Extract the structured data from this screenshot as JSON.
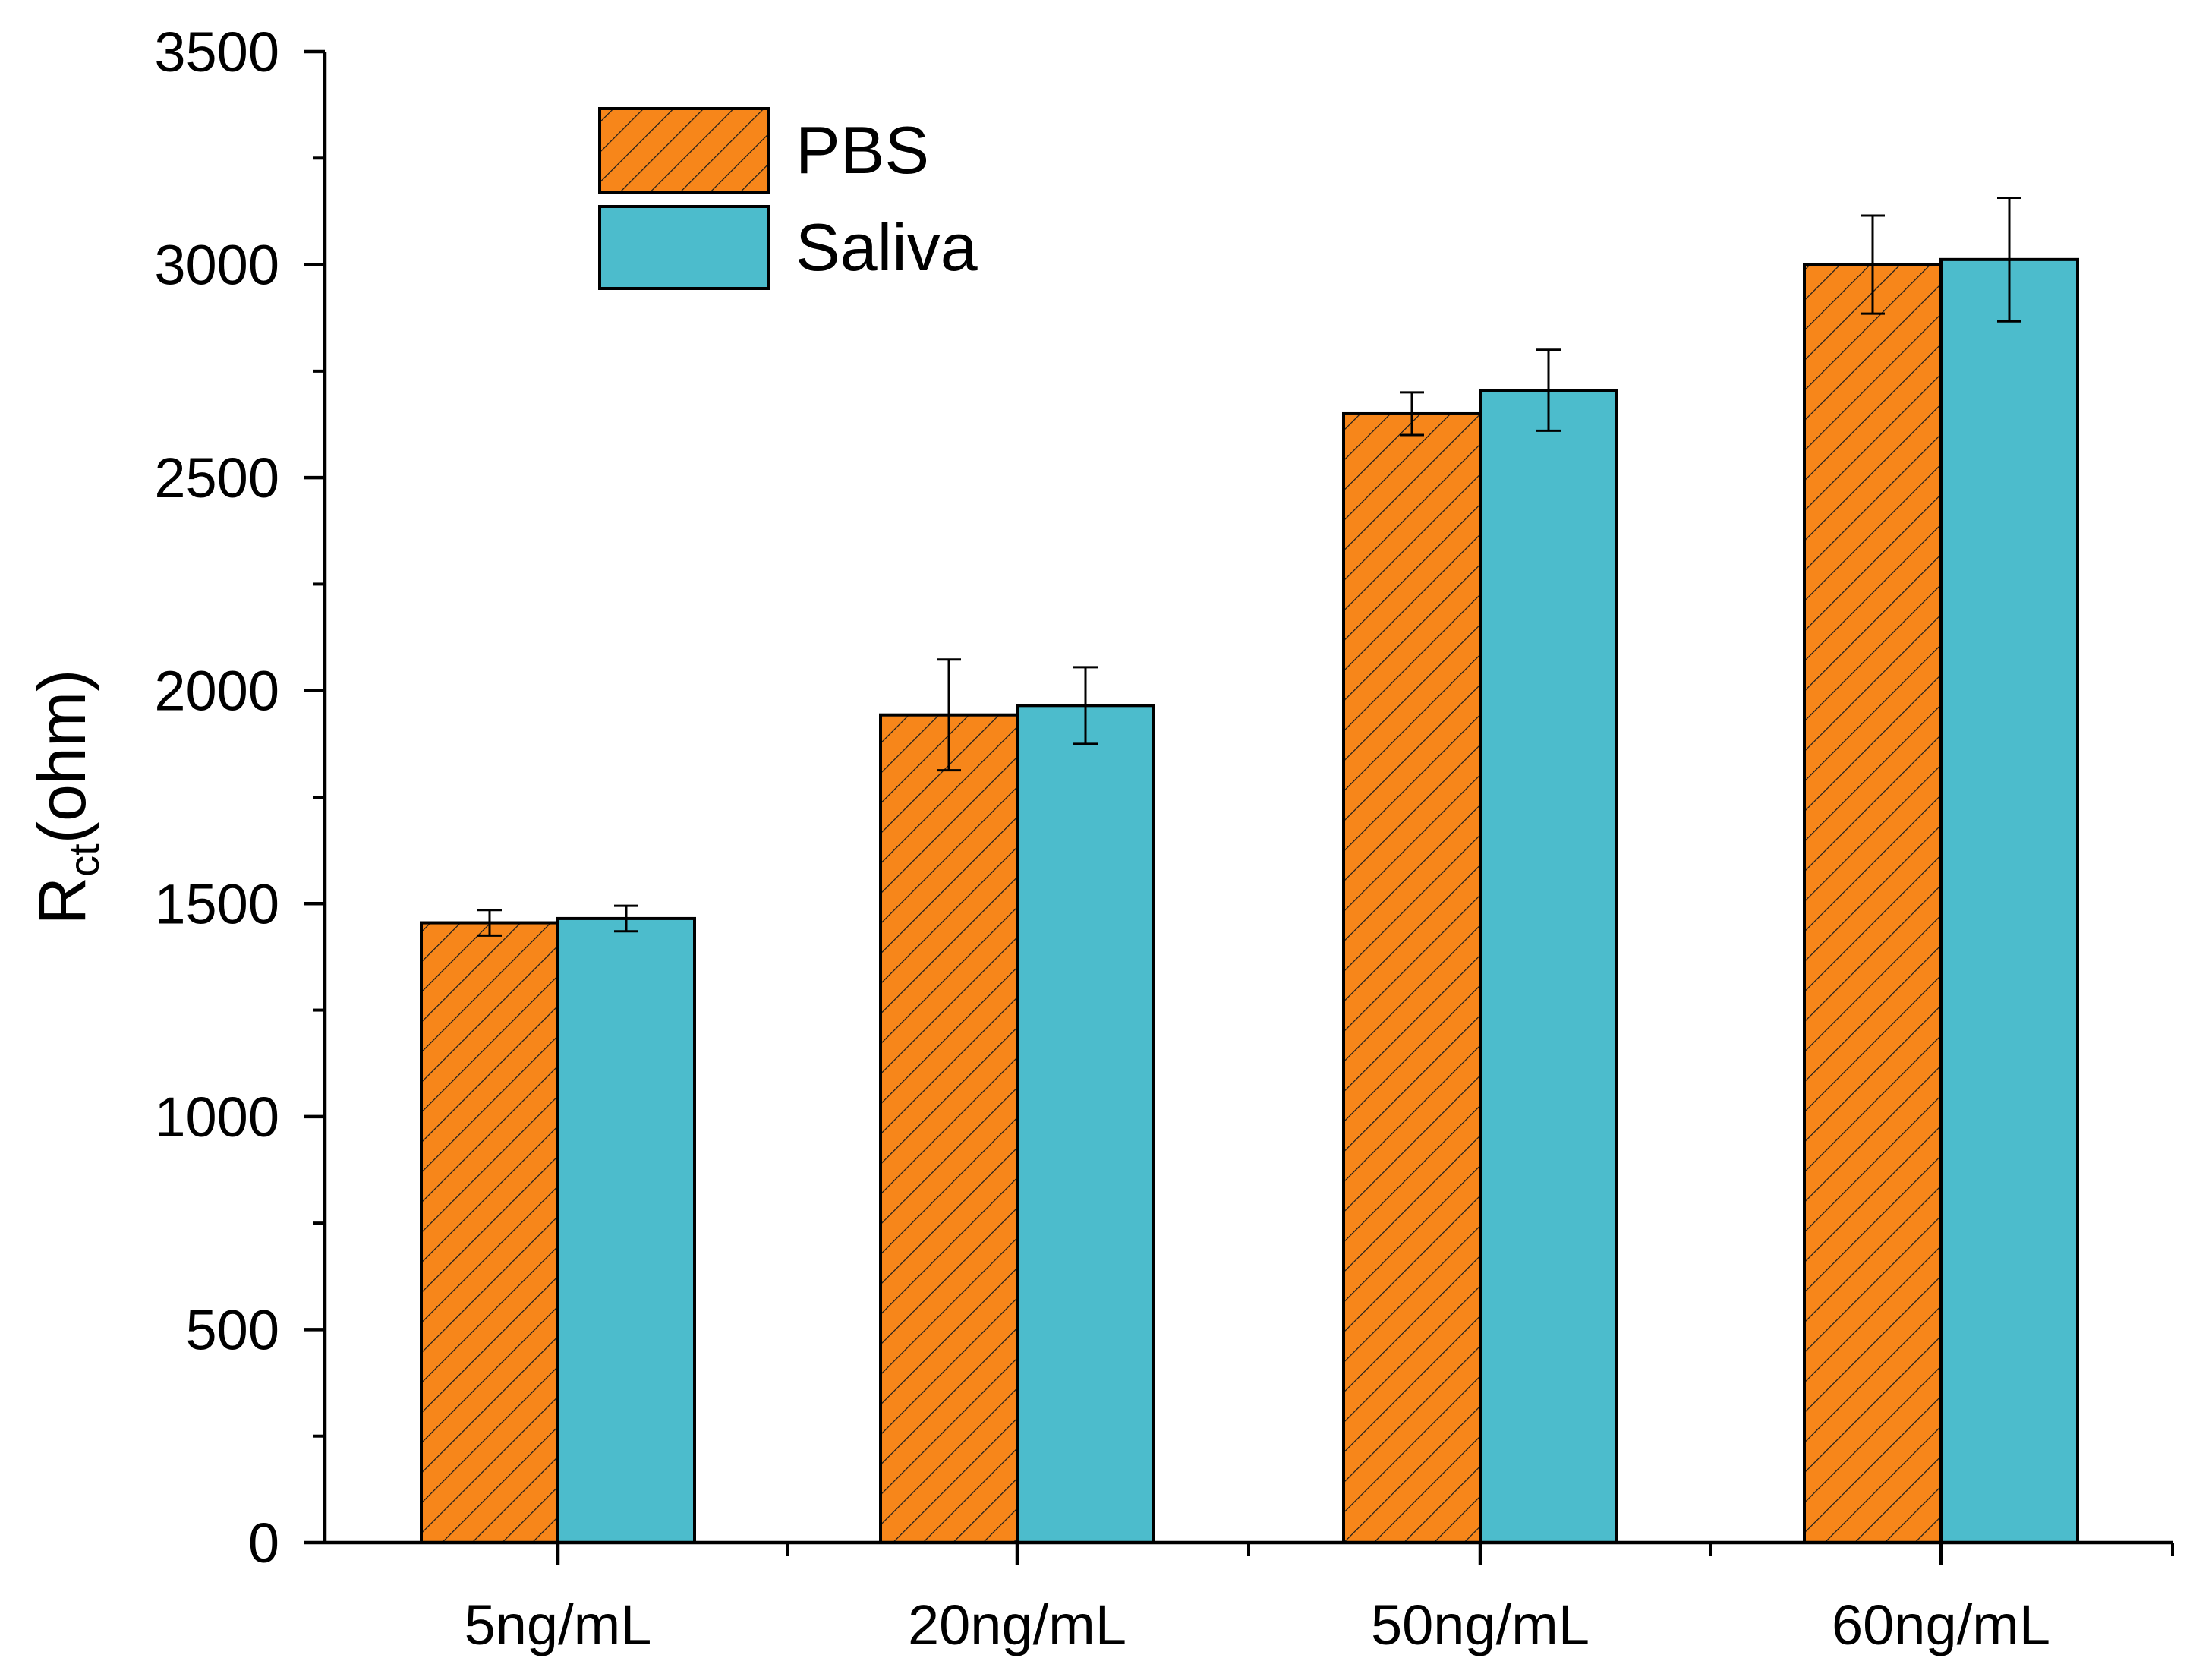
{
  "chart_data": {
    "type": "bar",
    "title": "",
    "xlabel": "",
    "ylabel": "R",
    "ylabel_subscript": "ct",
    "ylabel_suffix": "(ohm)",
    "ylim": [
      0,
      3500
    ],
    "yticks": [
      0,
      500,
      1000,
      1500,
      2000,
      2500,
      3000,
      3500
    ],
    "ytick_labels": [
      "0",
      "500",
      "1000",
      "1500",
      "2000",
      "2500",
      "3000",
      "3500"
    ],
    "categories": [
      "5ng/mL",
      "20ng/mL",
      "50ng/mL",
      "60ng/mL"
    ],
    "series": [
      {
        "name": "PBS",
        "values": [
          1455,
          1943,
          2650,
          3000
        ],
        "errors": [
          30,
          130,
          50,
          115
        ],
        "color": "#F7861A",
        "pattern": "diagonal-hatch"
      },
      {
        "name": "Saliva",
        "values": [
          1465,
          1965,
          2705,
          3012
        ],
        "errors": [
          30,
          90,
          95,
          145
        ],
        "color": "#4CBCCC",
        "pattern": "solid"
      }
    ],
    "legend_position": "top-left",
    "grid": false
  }
}
